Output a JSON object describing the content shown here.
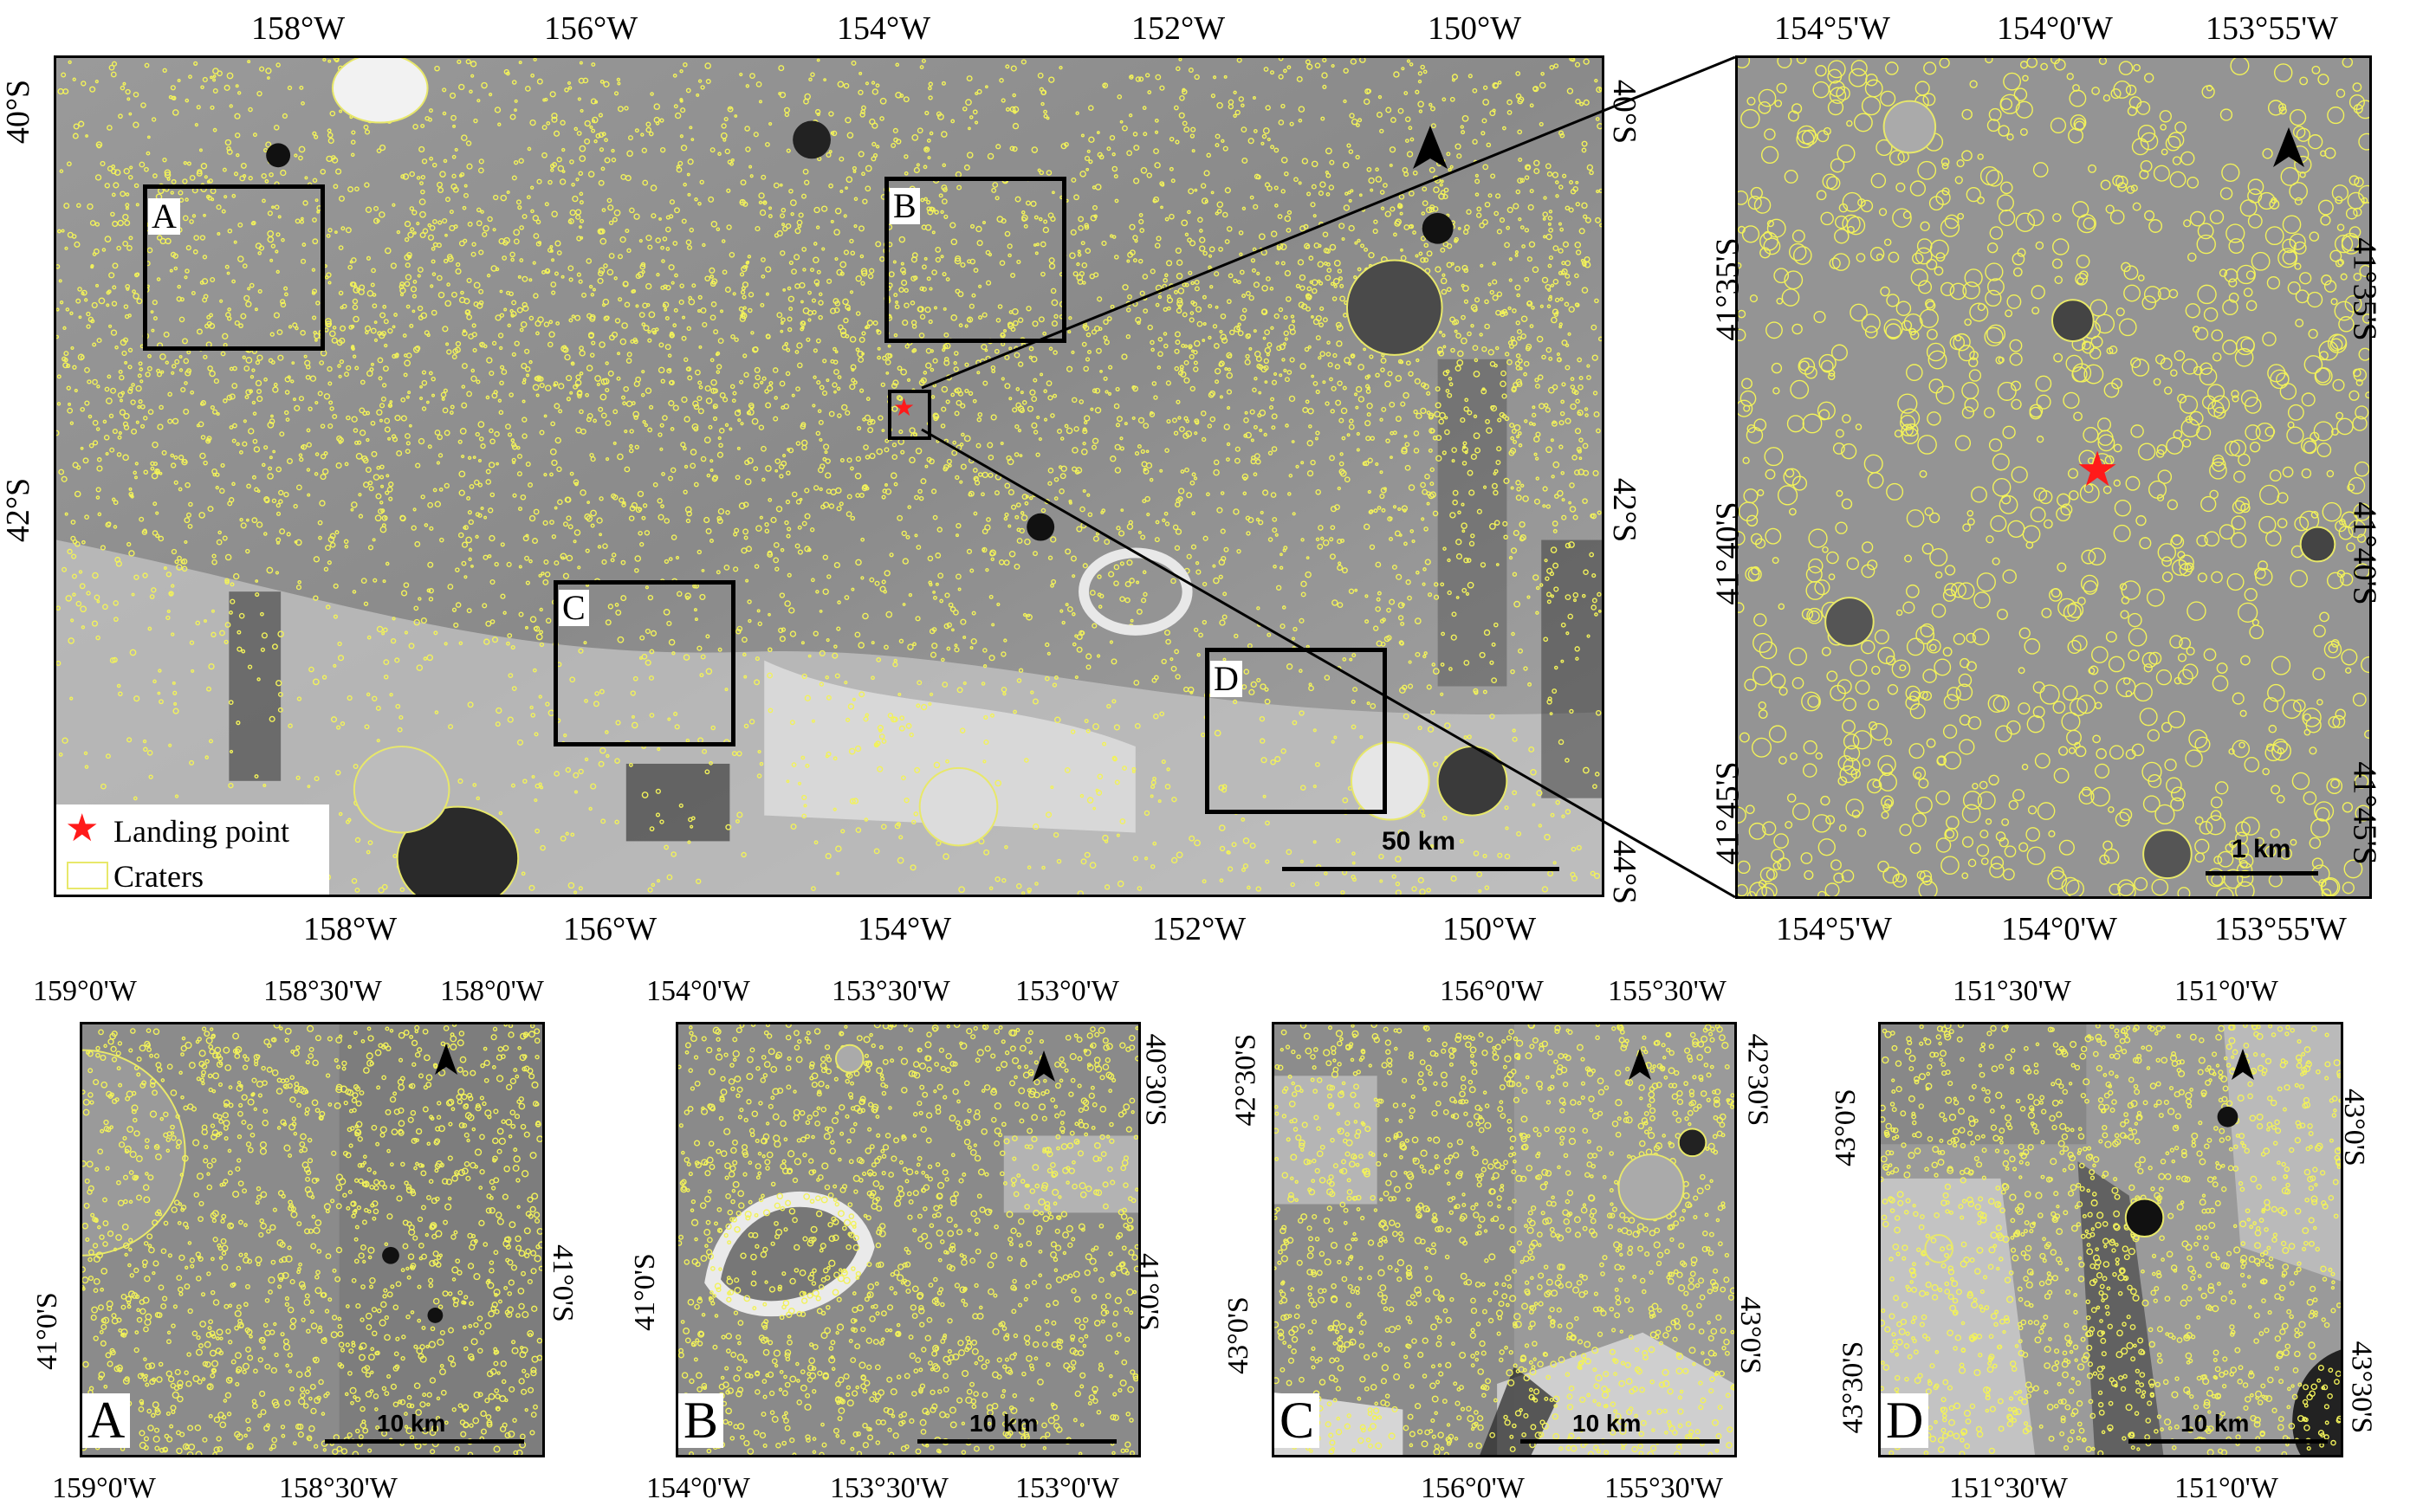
{
  "main_map": {
    "top_lon_labels": [
      "158°W",
      "156°W",
      "154°W",
      "152°W",
      "150°W"
    ],
    "bottom_lon_labels": [
      "158°W",
      "156°W",
      "154°W",
      "152°W",
      "150°W"
    ],
    "left_lat_labels": [
      "40°S",
      "42°S"
    ],
    "right_lat_labels": [
      "40°S",
      "42°S",
      "44°S"
    ],
    "boxes": [
      "A",
      "B",
      "C",
      "D"
    ],
    "legend": {
      "landing": "Landing point",
      "craters": "Craters"
    },
    "scale": "50 km"
  },
  "zoom_map": {
    "top_lon_labels": [
      "154°5'W",
      "154°0'W",
      "153°55'W"
    ],
    "bottom_lon_labels": [
      "154°5'W",
      "154°0'W",
      "153°55'W"
    ],
    "left_lat_labels": [
      "41°35'S",
      "41°40'S",
      "41°45'S"
    ],
    "right_lat_labels": [
      "41°35'S",
      "41°40'S",
      "41°45'S"
    ],
    "scale": "1 km"
  },
  "panels": [
    {
      "letter": "A",
      "top_lon": [
        "159°0'W",
        "158°30'W",
        "158°0'W"
      ],
      "bottom_lon": [
        "159°0'W",
        "158°30'W"
      ],
      "left_lat": [
        "41°0'S"
      ],
      "right_lat": [
        "41°0'S"
      ],
      "scale": "10 km"
    },
    {
      "letter": "B",
      "top_lon": [
        "154°0'W",
        "153°30'W",
        "153°0'W"
      ],
      "bottom_lon": [
        "154°0'W",
        "153°30'W",
        "153°0'W"
      ],
      "left_lat": [
        "41°0'S"
      ],
      "right_lat": [
        "40°30'S",
        "41°0'S"
      ],
      "scale": "10 km"
    },
    {
      "letter": "C",
      "top_lon": [
        "156°0'W",
        "155°30'W"
      ],
      "bottom_lon": [
        "156°0'W",
        "155°30'W"
      ],
      "left_lat": [
        "42°30'S",
        "43°0'S"
      ],
      "right_lat": [
        "42°30'S",
        "43°0'S"
      ],
      "scale": "10 km"
    },
    {
      "letter": "D",
      "top_lon": [
        "151°30'W",
        "151°0'W"
      ],
      "bottom_lon": [
        "151°30'W",
        "151°0'W"
      ],
      "left_lat": [
        "43°0'S",
        "43°30'S"
      ],
      "right_lat": [
        "43°0'S",
        "43°30'S"
      ],
      "scale": "10 km"
    }
  ],
  "colors": {
    "crater": "#f2f25a",
    "landing": "#ff1a1a",
    "frame": "#000000"
  }
}
